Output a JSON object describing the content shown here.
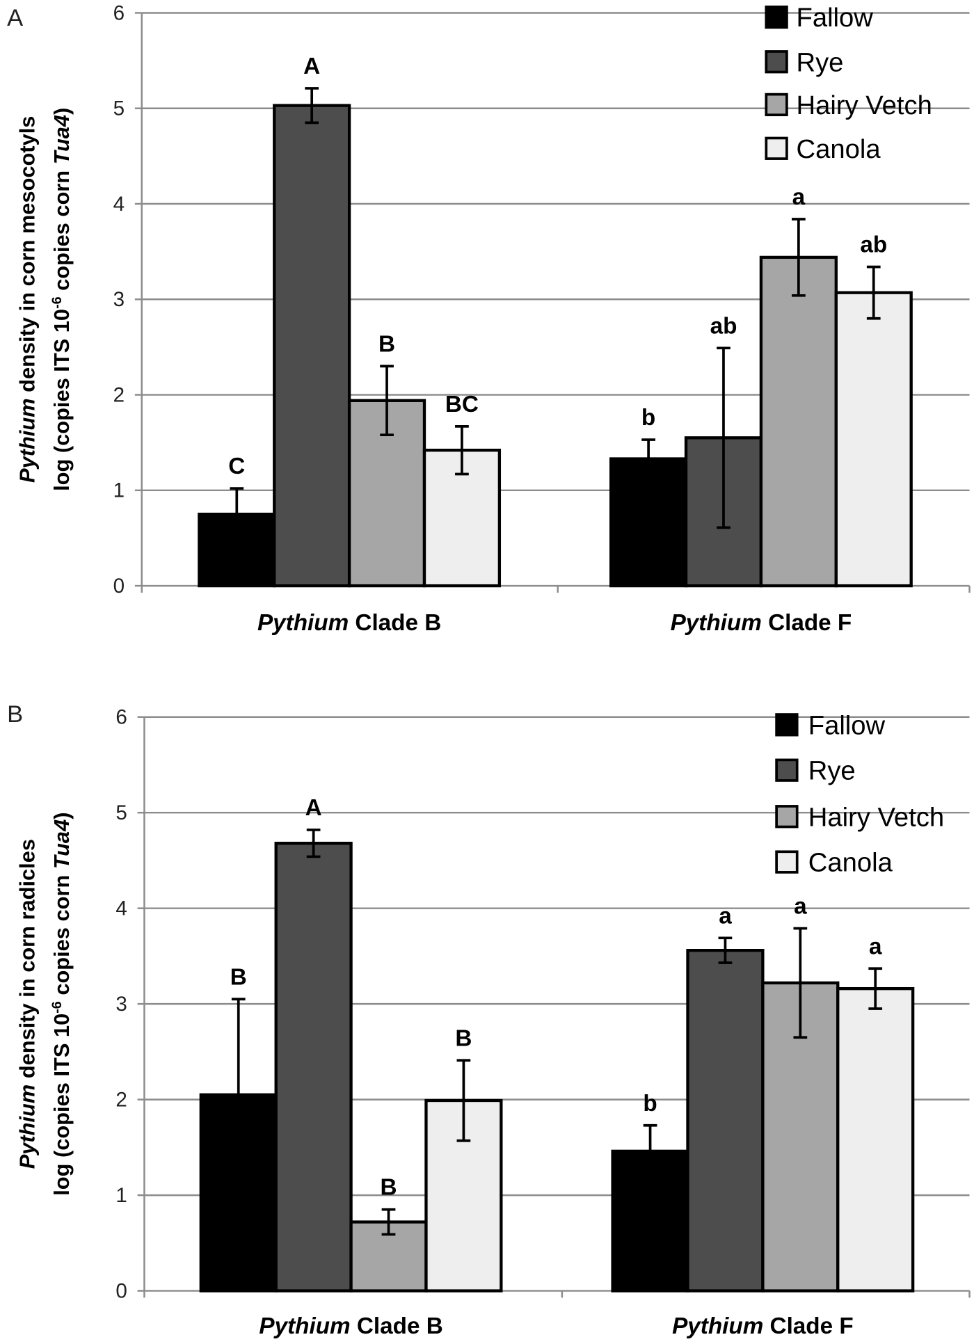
{
  "chart_data": [
    {
      "type": "bar",
      "panel_label": "A",
      "ylabel_line1": {
        "italic": "Pythium",
        "rest": " density in corn mesocotyls"
      },
      "ylabel_line2": {
        "pre": "log (copies ITS 10",
        "sup": "-6",
        "mid": " copies corn ",
        "italic": "Tua4",
        "post": ")"
      },
      "categories": [
        {
          "italic": "Pythium",
          "rest": " Clade B"
        },
        {
          "italic": "Pythium",
          "rest": " Clade F"
        }
      ],
      "ylim": [
        0,
        6
      ],
      "yticks": [
        "0",
        "1",
        "2",
        "3",
        "4",
        "5",
        "6"
      ],
      "grid": true,
      "legend_position": "top-right",
      "series": [
        {
          "name": "Fallow",
          "color": "#000000",
          "values": [
            0.75,
            1.33
          ],
          "errors": [
            0.27,
            0.2
          ],
          "letters": [
            "C",
            "b"
          ]
        },
        {
          "name": "Rye",
          "color": "#4d4d4d",
          "values": [
            5.03,
            1.55
          ],
          "errors": [
            0.18,
            0.94
          ],
          "letters": [
            "A",
            "ab"
          ]
        },
        {
          "name": "Hairy Vetch",
          "color": "#a6a6a6",
          "values": [
            1.94,
            3.44
          ],
          "errors": [
            0.36,
            0.4
          ],
          "letters": [
            "B",
            "a"
          ]
        },
        {
          "name": "Canola",
          "color": "#eeeeee",
          "values": [
            1.42,
            3.07
          ],
          "errors": [
            0.25,
            0.27
          ],
          "letters": [
            "BC",
            "ab"
          ]
        }
      ]
    },
    {
      "type": "bar",
      "panel_label": "B",
      "ylabel_line1": {
        "italic": "Pythium",
        "rest": " density in corn radicles"
      },
      "ylabel_line2": {
        "pre": "log (copies ITS 10",
        "sup": "-6",
        "mid": " copies corn ",
        "italic": "Tua4",
        "post": ")"
      },
      "categories": [
        {
          "italic": "Pythium",
          "rest": " Clade B"
        },
        {
          "italic": "Pythium",
          "rest": " Clade F"
        }
      ],
      "ylim": [
        0,
        6
      ],
      "yticks": [
        "0",
        "1",
        "2",
        "3",
        "4",
        "5",
        "6"
      ],
      "grid": true,
      "legend_position": "top-right",
      "series": [
        {
          "name": "Fallow",
          "color": "#000000",
          "values": [
            2.05,
            1.46
          ],
          "errors": [
            1.0,
            0.27
          ],
          "letters": [
            "B",
            "b"
          ]
        },
        {
          "name": "Rye",
          "color": "#4d4d4d",
          "values": [
            4.68,
            3.56
          ],
          "errors": [
            0.14,
            0.13
          ],
          "letters": [
            "A",
            "a"
          ]
        },
        {
          "name": "Hairy Vetch",
          "color": "#a6a6a6",
          "values": [
            0.72,
            3.22
          ],
          "errors": [
            0.13,
            0.57
          ],
          "letters": [
            "B",
            "a"
          ]
        },
        {
          "name": "Canola",
          "color": "#eeeeee",
          "values": [
            1.99,
            3.16
          ],
          "errors": [
            0.42,
            0.21
          ],
          "letters": [
            "B",
            "a"
          ]
        }
      ]
    }
  ]
}
